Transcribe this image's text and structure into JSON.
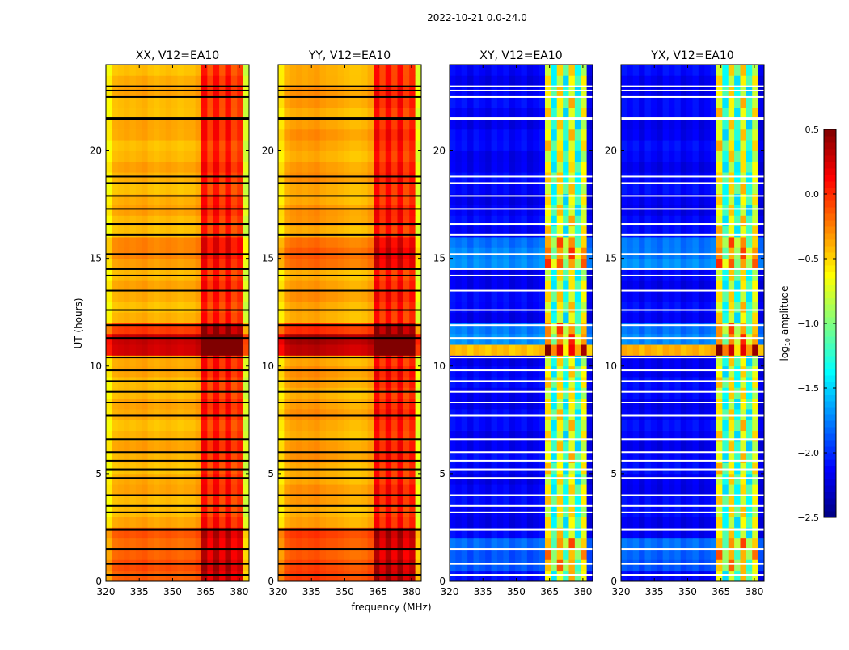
{
  "chart_data": {
    "type": "heatmap",
    "title": "2022-10-21 0.0-24.0",
    "xlabel": "frequency (MHz)",
    "ylabel": "UT (hours)",
    "xlim": [
      320,
      384.4
    ],
    "ylim": [
      0,
      24
    ],
    "xticks": [
      "320",
      "335",
      "350",
      "365",
      "380"
    ],
    "xtick_values": [
      320,
      335,
      350,
      365,
      380
    ],
    "yticks": [
      "0",
      "5",
      "10",
      "15",
      "20"
    ],
    "ytick_values": [
      0,
      5,
      10,
      15,
      20
    ],
    "colorbar": {
      "label": "log10 amplitude",
      "label_main": "log",
      "label_sub": "10",
      "label_rest": " amplitude",
      "range": [
        -2.5,
        0.5
      ],
      "ticks": [
        "0.5",
        "0.0",
        "−0.5",
        "−1.0",
        "−1.5",
        "−2.0",
        "−2.5"
      ],
      "tick_values": [
        0.5,
        0,
        -0.5,
        -1,
        -1.5,
        -2,
        -2.5
      ],
      "colormap": "jet"
    },
    "freq_bin_edges_start": 320,
    "freq_bin_width": 2.683,
    "time_bin_hours": 0.5,
    "panels": [
      {
        "title": "XX, V12=EA10",
        "flag_color": "#000000",
        "freq_profile": [
          -0.6,
          -0.42,
          -0.4,
          -0.38,
          -0.4,
          -0.38,
          -0.36,
          -0.4,
          -0.42,
          -0.4,
          -0.38,
          -0.4,
          -0.42,
          -0.4,
          -0.4,
          -0.35,
          0.12,
          -0.08,
          0.12,
          -0.08,
          0.12,
          -0.1,
          0.0,
          -0.75
        ],
        "time_offsets": [
          {
            "from": 0,
            "to": 2.4,
            "offset": 0.25
          },
          {
            "from": 10.3,
            "to": 11.3,
            "offset": 0.7
          },
          {
            "from": 11.3,
            "to": 12,
            "offset": 0.3
          },
          {
            "from": 14.5,
            "to": 16,
            "offset": 0.1
          }
        ]
      },
      {
        "title": "YY, V12=EA10",
        "flag_color": "#000000",
        "freq_profile": [
          -0.55,
          -0.38,
          -0.34,
          -0.32,
          -0.34,
          -0.32,
          -0.3,
          -0.34,
          -0.36,
          -0.36,
          -0.38,
          -0.4,
          -0.42,
          -0.42,
          -0.4,
          -0.35,
          0.15,
          -0.05,
          0.15,
          -0.05,
          0.15,
          -0.08,
          0.05,
          -0.7
        ],
        "time_offsets": [
          {
            "from": 0,
            "to": 2.4,
            "offset": 0.25
          },
          {
            "from": 10.3,
            "to": 11.3,
            "offset": 0.7
          },
          {
            "from": 11.3,
            "to": 12,
            "offset": 0.3
          },
          {
            "from": 14.5,
            "to": 16,
            "offset": 0.15
          }
        ]
      },
      {
        "title": "XY, V12=EA10",
        "flag_color": "#ffffff",
        "freq_profile": [
          -2.1,
          -2.15,
          -2.1,
          -2.2,
          -2.1,
          -2.15,
          -2.2,
          -2.1,
          -2.15,
          -2.1,
          -2.2,
          -2.15,
          -2.1,
          -2.2,
          -2.15,
          -2.1,
          -0.6,
          -1.3,
          -0.6,
          -1.3,
          -0.6,
          -1.3,
          -0.7,
          -2.2
        ],
        "time_offsets": [
          {
            "from": 0.5,
            "to": 2,
            "offset": 0.3
          },
          {
            "from": 10.4,
            "to": 11.2,
            "offset": 1.7
          },
          {
            "from": 11.2,
            "to": 12,
            "offset": 0.4
          },
          {
            "from": 14.5,
            "to": 16,
            "offset": 0.4
          }
        ]
      },
      {
        "title": "YX, V12=EA10",
        "flag_color": "#ffffff",
        "freq_profile": [
          -2.1,
          -2.15,
          -2.1,
          -2.2,
          -2.1,
          -2.15,
          -2.2,
          -2.1,
          -2.15,
          -2.1,
          -2.2,
          -2.15,
          -2.1,
          -2.2,
          -2.15,
          -2.1,
          -0.6,
          -1.3,
          -0.6,
          -1.3,
          -0.6,
          -1.3,
          -0.7,
          -2.2
        ],
        "time_offsets": [
          {
            "from": 0.5,
            "to": 2,
            "offset": 0.3
          },
          {
            "from": 10.4,
            "to": 11.2,
            "offset": 1.7
          },
          {
            "from": 11.2,
            "to": 12,
            "offset": 0.4
          },
          {
            "from": 14.5,
            "to": 16,
            "offset": 0.4
          }
        ]
      }
    ],
    "flagged_hours": [
      0.3,
      0.8,
      1.5,
      2.4,
      3.2,
      3.5,
      4.0,
      4.8,
      5.2,
      5.6,
      6.0,
      6.6,
      7.7,
      8.3,
      8.8,
      9.3,
      9.8,
      10.4,
      11.3,
      11.9,
      12.6,
      13.5,
      14.2,
      14.5,
      15.2,
      16.1,
      16.6,
      17.3,
      17.9,
      18.5,
      18.8,
      21.5,
      22.5,
      22.8,
      23.0
    ]
  }
}
